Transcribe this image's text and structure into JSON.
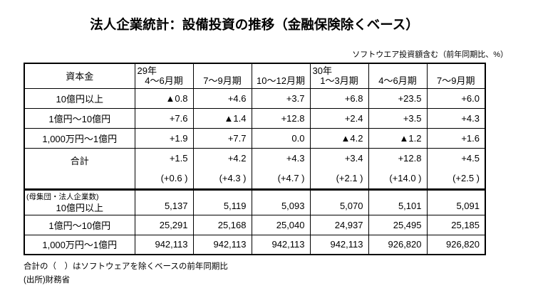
{
  "title": "法人企業統計：設備投資の推移（金融保険除くベース）",
  "subtitle": "ソフトウエア投資額含む（前年同期比、%）",
  "table": {
    "header": {
      "capital_label": "資本金",
      "columns": [
        {
          "year": "29年",
          "period": "4〜6月期"
        },
        {
          "year": "",
          "period": "7〜9月期"
        },
        {
          "year": "",
          "period": "10〜12月期"
        },
        {
          "year": "30年",
          "period": "1〜3月期"
        },
        {
          "year": "",
          "period": "4〜6月期"
        },
        {
          "year": "",
          "period": "7〜9月期"
        }
      ]
    },
    "investment_rows": [
      {
        "label": "10億円以上",
        "values": [
          "▲0.8",
          "+4.6",
          "+3.7",
          "+6.8",
          "+23.5",
          "+6.0"
        ]
      },
      {
        "label": "1億円〜10億円",
        "values": [
          "+7.6",
          "▲1.4",
          "+12.8",
          "+2.4",
          "+3.5",
          "+4.3"
        ]
      },
      {
        "label": "1,000万円〜1億円",
        "values": [
          "+1.9",
          "+7.7",
          "0.0",
          "▲4.2",
          "▲1.2",
          "+1.6"
        ]
      }
    ],
    "total_row": {
      "label": "合計",
      "values": [
        "+1.5",
        "+4.2",
        "+4.3",
        "+3.4",
        "+12.8",
        "+4.5"
      ],
      "sub_values": [
        "(+0.6 )",
        "(+4.3 )",
        "(+4.7 )",
        "(+2.1 )",
        "(+14.0 )",
        "(+2.5 )"
      ]
    },
    "population_section": {
      "section_label": "(母集団・法人企業数)",
      "rows": [
        {
          "label": "10億円以上",
          "values": [
            "5,137",
            "5,119",
            "5,093",
            "5,070",
            "5,101",
            "5,091"
          ]
        },
        {
          "label": "1億円〜10億円",
          "values": [
            "25,291",
            "25,168",
            "25,040",
            "24,937",
            "25,495",
            "25,185"
          ]
        },
        {
          "label": "1,000万円〜1億円",
          "values": [
            "942,113",
            "942,113",
            "942,113",
            "942,113",
            "926,820",
            "926,820"
          ]
        }
      ]
    }
  },
  "footnotes": [
    "合計の（　）はソフトウェアを除くベースの前年同期比",
    "(出所)財務省"
  ]
}
